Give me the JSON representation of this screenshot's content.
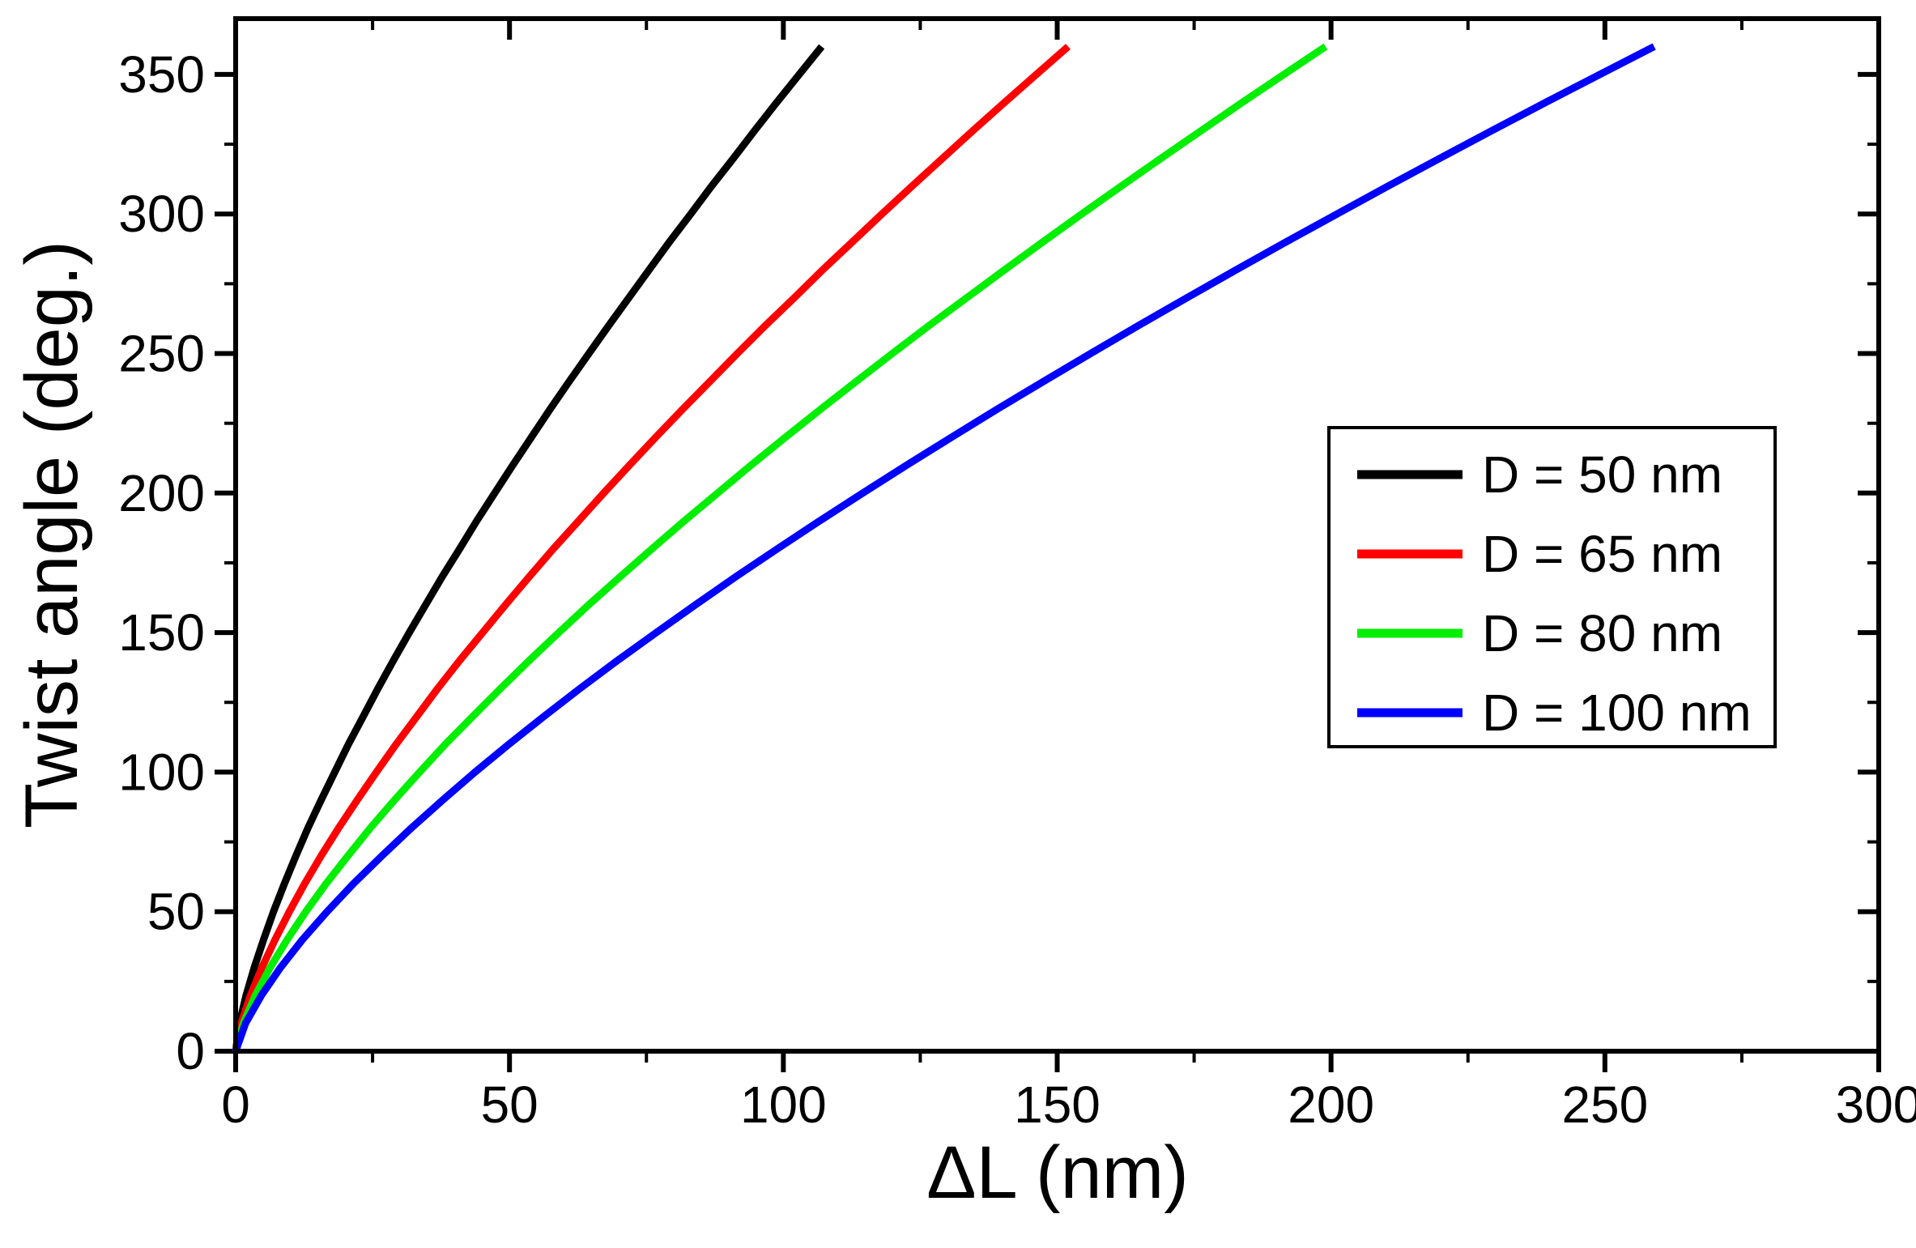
{
  "chart_data": {
    "type": "line",
    "title": "",
    "xlabel": "ΔL (nm)",
    "ylabel": "Twist angle (deg.)",
    "xlim": [
      0,
      300
    ],
    "ylim": [
      0,
      370
    ],
    "x_ticks": [
      0,
      50,
      100,
      150,
      200,
      250,
      300
    ],
    "x_minor_step": 25,
    "y_ticks": [
      0,
      50,
      100,
      150,
      200,
      250,
      300,
      350
    ],
    "y_minor_step": 25,
    "grid": false,
    "background": "#ffffff",
    "frame_color": "#000000",
    "legend": {
      "position": "middle-right",
      "border_color": "#000000",
      "entries": [
        {
          "label": "D = 50 nm",
          "color": "#000000"
        },
        {
          "label": "D = 65 nm",
          "color": "#ff0000"
        },
        {
          "label": "D = 80 nm",
          "color": "#00ee00"
        },
        {
          "label": "D = 100 nm",
          "color": "#0000ff"
        }
      ]
    },
    "twist_angle_deg": [
      0,
      10,
      20,
      30,
      40,
      50,
      60,
      70,
      80,
      90,
      100,
      110,
      120,
      130,
      140,
      150,
      160,
      170,
      180,
      190,
      200,
      210,
      220,
      230,
      240,
      250,
      260,
      270,
      280,
      290,
      300,
      310,
      320,
      330,
      340,
      350,
      360
    ],
    "series": [
      {
        "name": "D = 50 nm",
        "color": "#000000",
        "dL_nm": [
          0,
          0.7,
          1.9,
          3.4,
          5.1,
          6.9,
          8.9,
          11.0,
          13.2,
          15.6,
          18.1,
          20.6,
          23.3,
          26.0,
          28.8,
          31.7,
          34.7,
          37.7,
          40.9,
          44.0,
          47.3,
          50.6,
          54.0,
          57.4,
          60.9,
          64.5,
          68.1,
          71.8,
          75.5,
          79.2,
          83.1,
          86.9,
          90.9,
          94.8,
          98.8,
          102.9,
          107
        ]
      },
      {
        "name": "D = 65 nm",
        "color": "#ff0000",
        "dL_nm": [
          0,
          1.0,
          2.7,
          4.8,
          7.2,
          9.8,
          12.6,
          15.6,
          18.8,
          22.2,
          25.7,
          29.3,
          33.1,
          36.9,
          40.9,
          45.1,
          49.3,
          53.6,
          58.0,
          62.6,
          67.2,
          71.9,
          76.7,
          81.6,
          86.6,
          91.6,
          96.7,
          102.0,
          107.2,
          112.6,
          118.0,
          123.5,
          129.1,
          134.7,
          140.4,
          146.2,
          152
        ]
      },
      {
        "name": "D = 80 nm",
        "color": "#00ee00",
        "dL_nm": [
          0,
          1.4,
          3.6,
          6.3,
          9.4,
          12.8,
          16.5,
          20.5,
          24.6,
          29.0,
          33.6,
          38.3,
          43.3,
          48.4,
          53.6,
          59.0,
          64.5,
          70.2,
          76.0,
          81.9,
          88.0,
          94.1,
          100.4,
          106.8,
          113.3,
          119.9,
          126.6,
          133.5,
          140.4,
          147.4,
          154.5,
          161.7,
          169.0,
          176.4,
          183.8,
          191.4,
          199
        ]
      },
      {
        "name": "D = 100 nm",
        "color": "#0000ff",
        "dL_nm": [
          0,
          1.8,
          4.7,
          8.2,
          12.2,
          16.7,
          21.5,
          26.7,
          32.1,
          37.8,
          43.7,
          49.9,
          56.3,
          62.9,
          69.7,
          76.8,
          84.0,
          91.3,
          98.9,
          106.6,
          114.5,
          122.5,
          130.7,
          139.0,
          147.5,
          156.1,
          164.8,
          173.7,
          182.7,
          191.8,
          201.1,
          210.4,
          219.9,
          229.5,
          239.2,
          249.1,
          259
        ]
      }
    ]
  }
}
